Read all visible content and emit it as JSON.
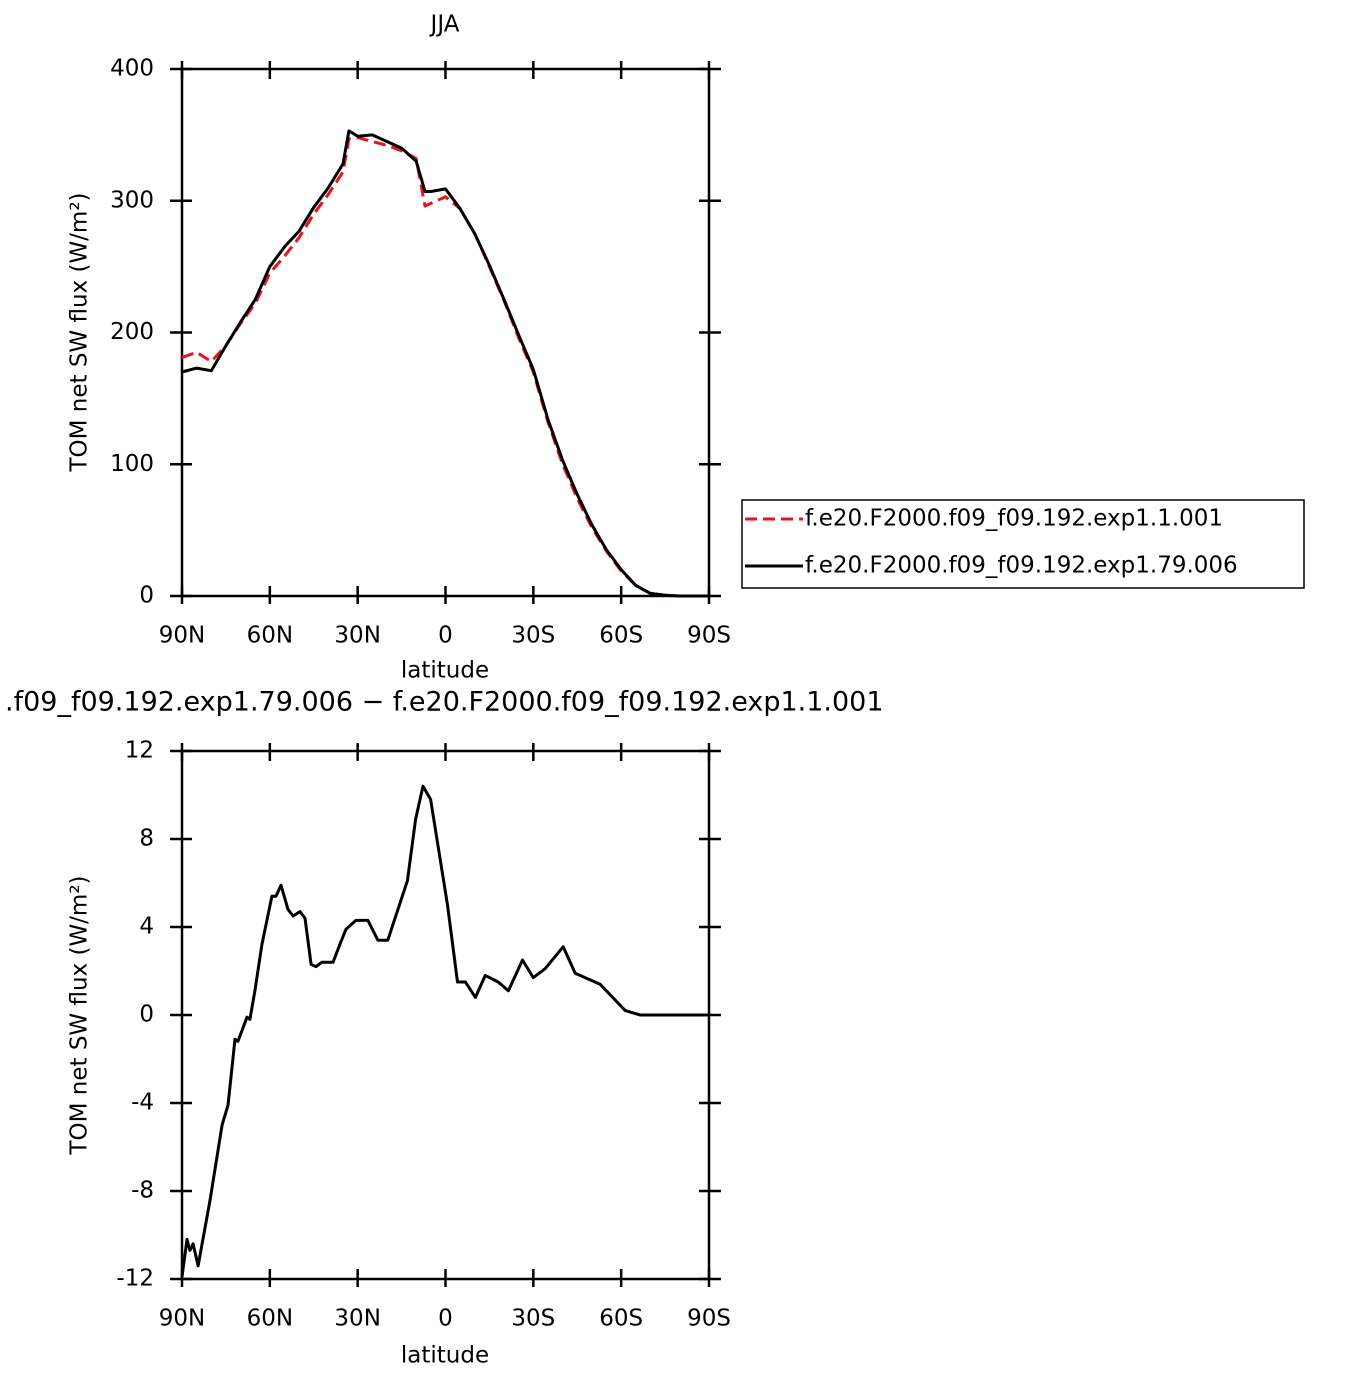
{
  "chart_data": [
    {
      "type": "line",
      "title": "JJA",
      "x_label": "latitude",
      "y_label": "TOM net SW flux (W/m²)",
      "x": [
        90,
        85,
        80,
        75,
        70,
        65,
        60,
        55,
        50,
        45,
        40,
        35,
        33,
        30,
        25,
        20,
        15,
        10,
        7,
        5,
        0,
        -5,
        -10,
        -15,
        -20,
        -25,
        -30,
        -35,
        -40,
        -45,
        -50,
        -55,
        -60,
        -65,
        -70,
        -75,
        -80,
        -85,
        -90
      ],
      "series": [
        {
          "name": "f.e20.F2000.f09_f09.192.exp1.1.001",
          "color": "#e8141c",
          "dashed": true,
          "values": [
            181,
            185,
            178,
            190,
            207,
            222,
            245,
            258,
            272,
            290,
            305,
            322,
            347,
            348,
            345,
            342,
            338,
            332,
            296,
            298,
            303,
            294,
            275,
            250,
            224,
            196,
            170,
            132,
            100,
            74,
            52,
            34,
            19,
            8,
            2,
            0.5,
            0,
            0,
            0
          ]
        },
        {
          "name": "f.e20.F2000.f09_f09.192.exp1.79.006",
          "color": "#000000",
          "dashed": false,
          "values": [
            170,
            173,
            171,
            190,
            208,
            225,
            250,
            265,
            277,
            295,
            310,
            328,
            353,
            349,
            350,
            345,
            340,
            330,
            307,
            307,
            309,
            294,
            275,
            251,
            225,
            198,
            172,
            134,
            103,
            77,
            54,
            35,
            20,
            8,
            2,
            0.5,
            0,
            0,
            0
          ]
        }
      ],
      "xlim": [
        90,
        -90
      ],
      "ylim": [
        0,
        400
      ],
      "xticks": [
        {
          "value": 90,
          "label": "90N"
        },
        {
          "value": 60,
          "label": "60N"
        },
        {
          "value": 30,
          "label": "30N"
        },
        0,
        {
          "value": -30,
          "label": "30S"
        },
        {
          "value": -60,
          "label": "60S"
        },
        {
          "value": -90,
          "label": "90S"
        }
      ],
      "yticks": [
        0,
        100,
        200,
        300,
        400
      ]
    },
    {
      "type": "line",
      "title": ".f09_f09.192.exp1.79.006 − f.e20.F2000.f09_f09.192.exp1.1.001",
      "x_label": "latitude",
      "y_label": "TOM net SW flux (W/m²)",
      "x": [
        90,
        88.3,
        87.3,
        86.2,
        84.5,
        80.4,
        76.3,
        74.3,
        71.9,
        70.9,
        67.8,
        66.8,
        65.1,
        62.7,
        59.3,
        57.9,
        56.2,
        53.8,
        52.1,
        49.7,
        48,
        45.9,
        44.2,
        42.2,
        38.4,
        36.1,
        34,
        30.6,
        26.5,
        23.1,
        19.7,
        13,
        10.2,
        7.7,
        5.1,
        -0.7,
        -4.1,
        -6.8,
        -10.2,
        -13.6,
        -18,
        -21.5,
        -26.3,
        -30,
        -34,
        -40.2,
        -44.3,
        -52.8,
        -61.4,
        -66.5,
        -90
      ],
      "values": [
        -11.9,
        -10.2,
        -10.7,
        -10.4,
        -11.4,
        -8.4,
        -5,
        -4.1,
        -1.1,
        -1.2,
        -0.1,
        -0.2,
        1.1,
        3.2,
        5.4,
        5.4,
        5.9,
        4.8,
        4.5,
        4.7,
        4.4,
        2.3,
        2.2,
        2.4,
        2.4,
        3.2,
        3.9,
        4.3,
        4.3,
        3.4,
        3.4,
        6.1,
        8.9,
        10.4,
        9.8,
        5,
        1.5,
        1.5,
        0.8,
        1.8,
        1.5,
        1.1,
        2.5,
        1.7,
        2.1,
        3.1,
        1.9,
        1.4,
        0.2,
        0,
        0
      ],
      "color": "#000000",
      "xlim": [
        90,
        -90
      ],
      "ylim": [
        -12,
        12
      ],
      "xticks": [
        {
          "value": 90,
          "label": "90N"
        },
        {
          "value": 60,
          "label": "60N"
        },
        {
          "value": 30,
          "label": "30N"
        },
        0,
        {
          "value": -30,
          "label": "30S"
        },
        {
          "value": -60,
          "label": "60S"
        },
        {
          "value": -90,
          "label": "90S"
        }
      ],
      "yticks": [
        -12,
        -8,
        -4,
        0,
        4,
        8,
        12
      ]
    }
  ]
}
